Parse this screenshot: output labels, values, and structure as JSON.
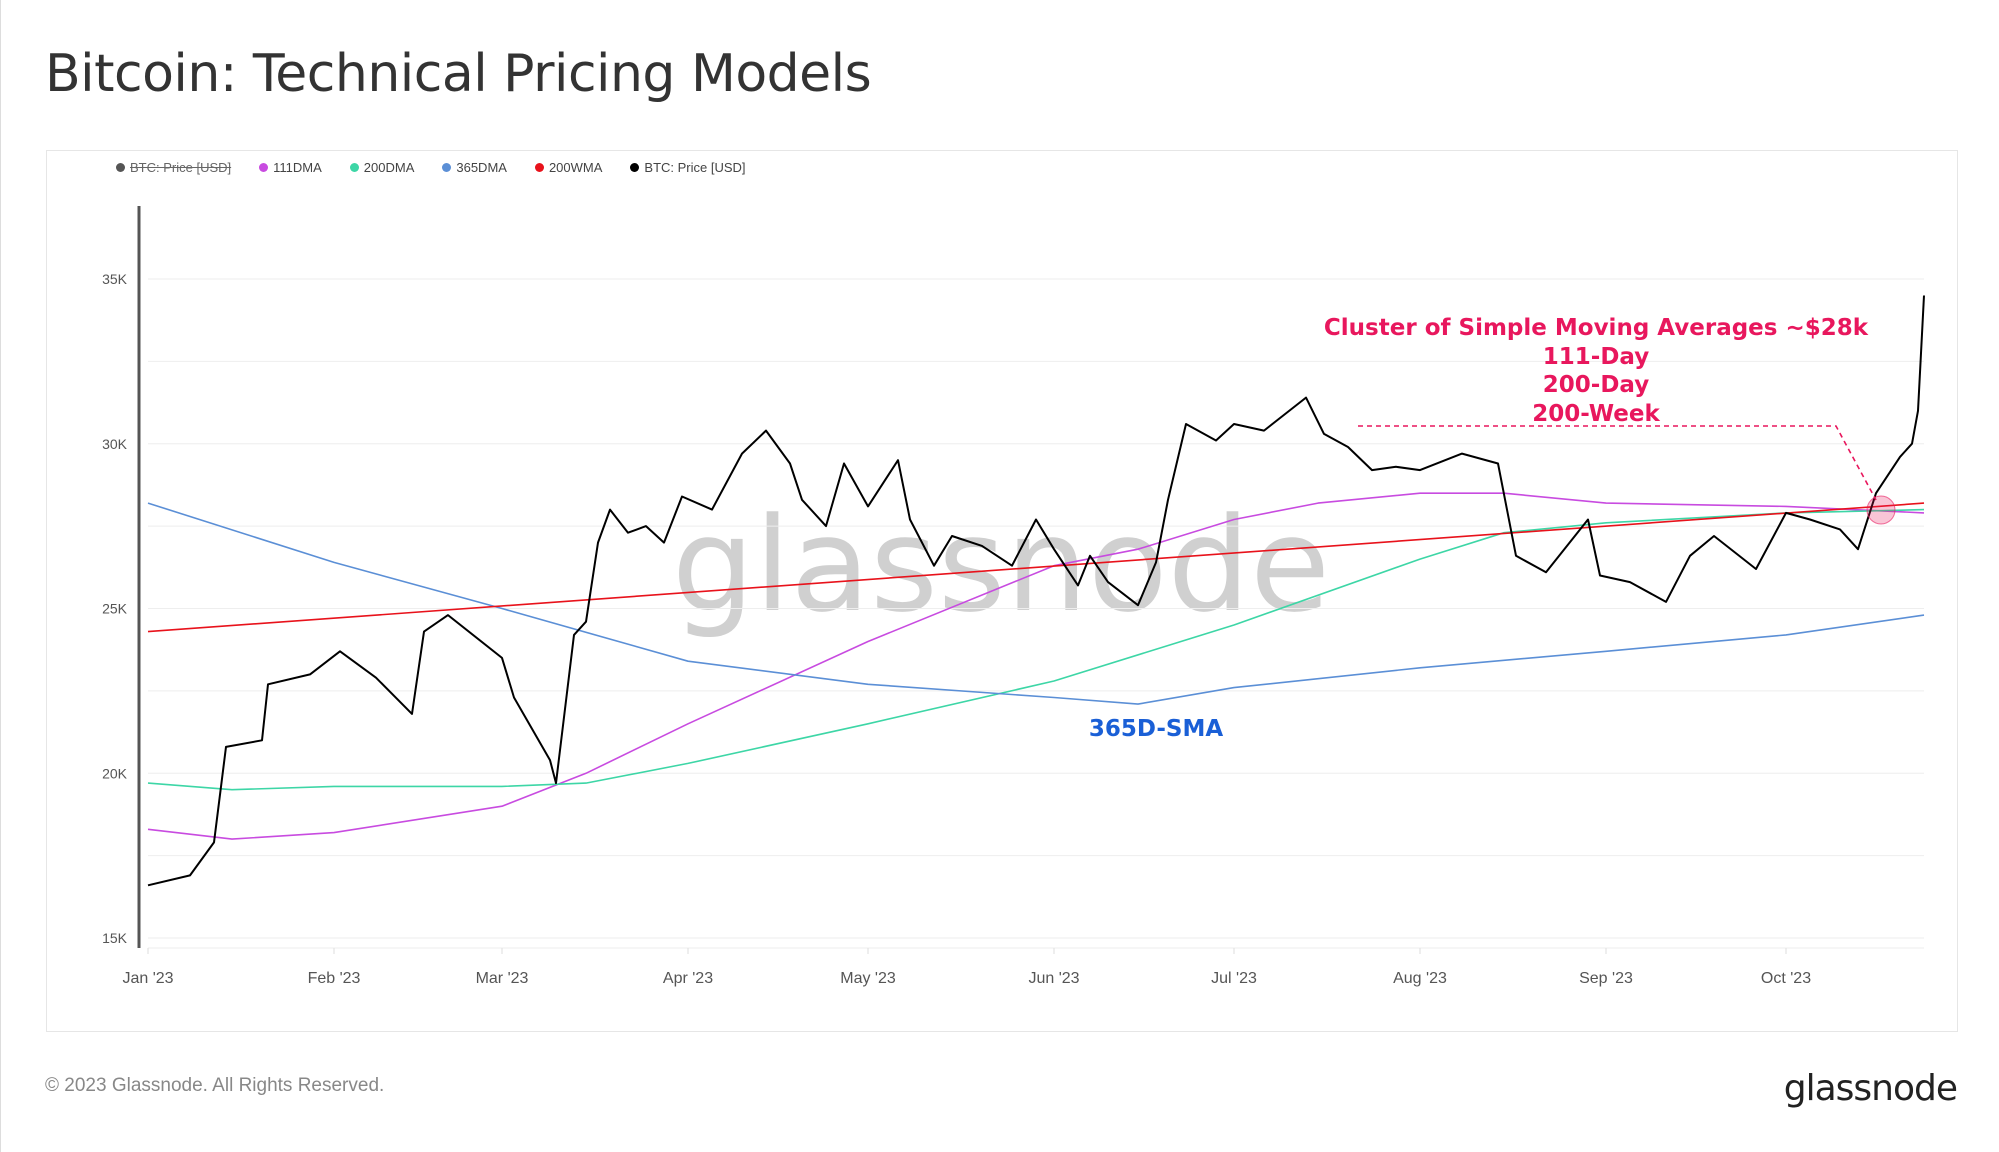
{
  "title": "Bitcoin: Technical Pricing Models",
  "footer": "© 2023 Glassnode. All Rights Reserved.",
  "logo": "glassnode",
  "watermark": "glassnode",
  "legend": [
    {
      "label": "BTC: Price [USD]",
      "color": "#555555",
      "disabled": true
    },
    {
      "label": "111DMA",
      "color": "#c84be0"
    },
    {
      "label": "200DMA",
      "color": "#3dd6a6"
    },
    {
      "label": "365DMA",
      "color": "#5b8fd6"
    },
    {
      "label": "200WMA",
      "color": "#e8121b"
    },
    {
      "label": "BTC: Price [USD]",
      "color": "#000000"
    }
  ],
  "annotations": {
    "cluster_lines": [
      "Cluster of Simple Moving Averages ~$28k",
      "111-Day",
      "200-Day",
      "200-Week"
    ],
    "cluster_color": "#e8175d",
    "sma_label": "365D-SMA",
    "sma_color": "#1a5fd6"
  },
  "chart_data": {
    "type": "line",
    "title": "Bitcoin: Technical Pricing Models",
    "xlabel": "",
    "ylabel": "",
    "ylim": [
      15000,
      37000
    ],
    "yticks": [
      {
        "v": 15000,
        "label": "15K"
      },
      {
        "v": 20000,
        "label": "20K"
      },
      {
        "v": 25000,
        "label": "25K"
      },
      {
        "v": 30000,
        "label": "30K"
      },
      {
        "v": 35000,
        "label": "35K"
      }
    ],
    "xlim": [
      "2023-01-01",
      "2023-10-24"
    ],
    "xticks": [
      {
        "d": "2023-01-01",
        "label": "Jan '23"
      },
      {
        "d": "2023-02-01",
        "label": "Feb '23"
      },
      {
        "d": "2023-03-01",
        "label": "Mar '23"
      },
      {
        "d": "2023-04-01",
        "label": "Apr '23"
      },
      {
        "d": "2023-05-01",
        "label": "May '23"
      },
      {
        "d": "2023-06-01",
        "label": "Jun '23"
      },
      {
        "d": "2023-07-01",
        "label": "Jul '23"
      },
      {
        "d": "2023-08-01",
        "label": "Aug '23"
      },
      {
        "d": "2023-09-01",
        "label": "Sep '23"
      },
      {
        "d": "2023-10-01",
        "label": "Oct '23"
      }
    ],
    "grid": true,
    "legend_position": "top-left",
    "series": [
      {
        "name": "111DMA",
        "color": "#c84be0",
        "points": [
          [
            "2023-01-01",
            18300
          ],
          [
            "2023-01-15",
            18000
          ],
          [
            "2023-02-01",
            18200
          ],
          [
            "2023-03-01",
            19000
          ],
          [
            "2023-03-15",
            20000
          ],
          [
            "2023-04-01",
            21500
          ],
          [
            "2023-05-01",
            24000
          ],
          [
            "2023-06-01",
            26300
          ],
          [
            "2023-06-15",
            26800
          ],
          [
            "2023-07-01",
            27700
          ],
          [
            "2023-07-15",
            28200
          ],
          [
            "2023-08-01",
            28500
          ],
          [
            "2023-08-15",
            28500
          ],
          [
            "2023-09-01",
            28200
          ],
          [
            "2023-10-01",
            28100
          ],
          [
            "2023-10-24",
            27900
          ]
        ]
      },
      {
        "name": "200DMA",
        "color": "#3dd6a6",
        "points": [
          [
            "2023-01-01",
            19700
          ],
          [
            "2023-01-15",
            19500
          ],
          [
            "2023-02-01",
            19600
          ],
          [
            "2023-03-01",
            19600
          ],
          [
            "2023-03-15",
            19700
          ],
          [
            "2023-04-01",
            20300
          ],
          [
            "2023-05-01",
            21500
          ],
          [
            "2023-06-01",
            22800
          ],
          [
            "2023-07-01",
            24500
          ],
          [
            "2023-08-01",
            26500
          ],
          [
            "2023-08-15",
            27300
          ],
          [
            "2023-09-01",
            27600
          ],
          [
            "2023-10-01",
            27900
          ],
          [
            "2023-10-24",
            28000
          ]
        ]
      },
      {
        "name": "365DMA",
        "color": "#5b8fd6",
        "points": [
          [
            "2023-01-01",
            28200
          ],
          [
            "2023-02-01",
            26400
          ],
          [
            "2023-03-01",
            25000
          ],
          [
            "2023-04-01",
            23400
          ],
          [
            "2023-05-01",
            22700
          ],
          [
            "2023-06-01",
            22300
          ],
          [
            "2023-06-15",
            22100
          ],
          [
            "2023-07-01",
            22600
          ],
          [
            "2023-08-01",
            23200
          ],
          [
            "2023-09-01",
            23700
          ],
          [
            "2023-10-01",
            24200
          ],
          [
            "2023-10-24",
            24800
          ]
        ]
      },
      {
        "name": "200WMA",
        "color": "#e8121b",
        "points": [
          [
            "2023-01-01",
            24300
          ],
          [
            "2023-10-24",
            28200
          ]
        ]
      },
      {
        "name": "BTC: Price [USD]",
        "color": "#000000",
        "points": [
          [
            "2023-01-01",
            16600
          ],
          [
            "2023-01-08",
            16900
          ],
          [
            "2023-01-12",
            17900
          ],
          [
            "2023-01-14",
            20800
          ],
          [
            "2023-01-20",
            21000
          ],
          [
            "2023-01-21",
            22700
          ],
          [
            "2023-01-28",
            23000
          ],
          [
            "2023-02-02",
            23700
          ],
          [
            "2023-02-08",
            22900
          ],
          [
            "2023-02-14",
            21800
          ],
          [
            "2023-02-16",
            24300
          ],
          [
            "2023-02-20",
            24800
          ],
          [
            "2023-03-01",
            23500
          ],
          [
            "2023-03-03",
            22300
          ],
          [
            "2023-03-09",
            20400
          ],
          [
            "2023-03-10",
            19700
          ],
          [
            "2023-03-13",
            24200
          ],
          [
            "2023-03-15",
            24600
          ],
          [
            "2023-03-17",
            27000
          ],
          [
            "2023-03-19",
            28000
          ],
          [
            "2023-03-22",
            27300
          ],
          [
            "2023-03-25",
            27500
          ],
          [
            "2023-03-28",
            27000
          ],
          [
            "2023-03-31",
            28400
          ],
          [
            "2023-04-05",
            28000
          ],
          [
            "2023-04-10",
            29700
          ],
          [
            "2023-04-14",
            30400
          ],
          [
            "2023-04-18",
            29400
          ],
          [
            "2023-04-20",
            28300
          ],
          [
            "2023-04-24",
            27500
          ],
          [
            "2023-04-27",
            29400
          ],
          [
            "2023-05-01",
            28100
          ],
          [
            "2023-05-06",
            29500
          ],
          [
            "2023-05-08",
            27700
          ],
          [
            "2023-05-12",
            26300
          ],
          [
            "2023-05-15",
            27200
          ],
          [
            "2023-05-20",
            26900
          ],
          [
            "2023-05-25",
            26300
          ],
          [
            "2023-05-29",
            27700
          ],
          [
            "2023-06-01",
            26800
          ],
          [
            "2023-06-05",
            25700
          ],
          [
            "2023-06-07",
            26600
          ],
          [
            "2023-06-10",
            25800
          ],
          [
            "2023-06-15",
            25100
          ],
          [
            "2023-06-18",
            26400
          ],
          [
            "2023-06-20",
            28300
          ],
          [
            "2023-06-23",
            30600
          ],
          [
            "2023-06-28",
            30100
          ],
          [
            "2023-07-01",
            30600
          ],
          [
            "2023-07-06",
            30400
          ],
          [
            "2023-07-13",
            31400
          ],
          [
            "2023-07-16",
            30300
          ],
          [
            "2023-07-20",
            29900
          ],
          [
            "2023-07-24",
            29200
          ],
          [
            "2023-07-28",
            29300
          ],
          [
            "2023-08-01",
            29200
          ],
          [
            "2023-08-08",
            29700
          ],
          [
            "2023-08-14",
            29400
          ],
          [
            "2023-08-17",
            26600
          ],
          [
            "2023-08-22",
            26100
          ],
          [
            "2023-08-29",
            27700
          ],
          [
            "2023-08-31",
            26000
          ],
          [
            "2023-09-05",
            25800
          ],
          [
            "2023-09-11",
            25200
          ],
          [
            "2023-09-15",
            26600
          ],
          [
            "2023-09-19",
            27200
          ],
          [
            "2023-09-26",
            26200
          ],
          [
            "2023-10-01",
            27900
          ],
          [
            "2023-10-05",
            27700
          ],
          [
            "2023-10-10",
            27400
          ],
          [
            "2023-10-13",
            26800
          ],
          [
            "2023-10-16",
            28500
          ],
          [
            "2023-10-20",
            29600
          ],
          [
            "2023-10-22",
            30000
          ],
          [
            "2023-10-23",
            31000
          ],
          [
            "2023-10-24",
            34500
          ]
        ]
      }
    ]
  }
}
